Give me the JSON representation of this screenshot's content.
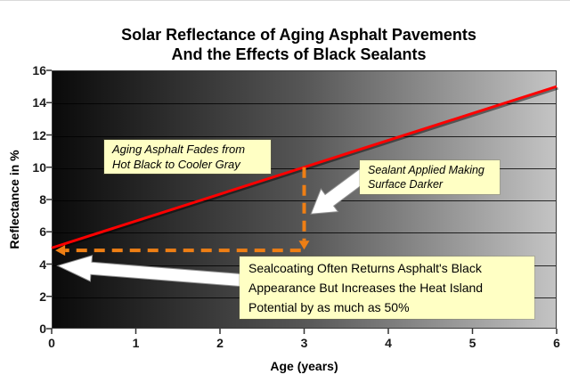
{
  "title": {
    "line1": "Solar Reflectance of Aging Asphalt Pavements",
    "line2": "And the Effects of Black Sealants"
  },
  "chart_data": {
    "type": "line",
    "title": "Solar Reflectance of Aging Asphalt Pavements And the Effects of Black Sealants",
    "xlabel": "Age (years)",
    "ylabel": "Reflectance in %",
    "xlim": [
      0,
      6
    ],
    "ylim": [
      0,
      16
    ],
    "xticks": [
      0,
      1,
      2,
      3,
      4,
      5,
      6
    ],
    "yticks": [
      0,
      2,
      4,
      6,
      8,
      10,
      12,
      14,
      16
    ],
    "grid": true,
    "legend": false,
    "plot_background": {
      "style": "horizontal-gradient",
      "left_color": "#0a0a0a",
      "mid_color": "#565656",
      "right_color": "#c4c4c4"
    },
    "series": [
      {
        "name": "asphalt-reflectance-trend",
        "color": "#ff0000",
        "style": "solid",
        "points": [
          {
            "x": 0,
            "y": 5
          },
          {
            "x": 6,
            "y": 15
          }
        ]
      }
    ],
    "dashed_arrows": [
      {
        "name": "sealant-drop-arrow",
        "color": "#ef7f14",
        "from": {
          "x": 3,
          "y": 10
        },
        "to": {
          "x": 3,
          "y": 5.45
        },
        "head": "down"
      },
      {
        "name": "reset-to-black-arrow",
        "color": "#ef7f14",
        "from": {
          "x": 2.96,
          "y": 4.85
        },
        "to": {
          "x": 0.16,
          "y": 4.85
        },
        "head": "left"
      }
    ],
    "block_arrows": [
      {
        "name": "sealant-pointer-arrow",
        "tail": {
          "x": 3.75,
          "y": 9.7
        },
        "tip": {
          "x": 3.08,
          "y": 7.1
        },
        "shaft_half": 8,
        "head_half": 16,
        "head_len": 26
      },
      {
        "name": "sealcoat-pointer-arrow",
        "tail": {
          "x": 2.26,
          "y": 3.0
        },
        "tip": {
          "x": 0.07,
          "y": 3.9
        },
        "shaft_half": 7,
        "head_half": 14.5,
        "head_len": 38
      }
    ],
    "annotations": [
      {
        "id": "fade",
        "style": "italic",
        "lines": [
          "Aging Asphalt Fades from",
          "Hot Black to Cooler Gray"
        ]
      },
      {
        "id": "sealant",
        "style": "italic",
        "lines": [
          "Sealant Applied Making",
          "Surface Darker"
        ]
      },
      {
        "id": "sealcoat",
        "style": "normal",
        "lines": [
          "Sealcoating Often Returns Asphalt's Black",
          "Appearance But Increases the Heat Island",
          "Potential by as much as 50%"
        ]
      }
    ],
    "colors": {
      "line": "#ff0000",
      "dashed_arrows": "#ef7f14",
      "annotation_background": "#ffffc4",
      "block_arrow_fill": "#ffffff",
      "text": "#000000",
      "page_background": "#ffffff"
    }
  }
}
